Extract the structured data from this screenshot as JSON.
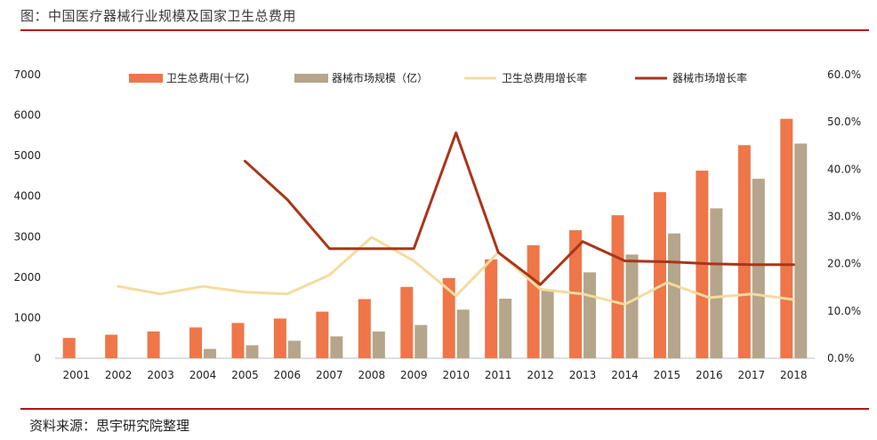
{
  "title": "图：中国医疗器械行业规模及国家卫生总费用",
  "source": "资料来源：思宇研究院整理",
  "colors": {
    "health_spend_bar": "#ee7649",
    "device_market_bar": "#b5a58a",
    "health_spend_growth_line": "#f3dc9f",
    "device_market_growth_line": "#a8361a",
    "rule": "#b3121b"
  },
  "chart_data": {
    "type": "bar",
    "categories": [
      "2001",
      "2002",
      "2003",
      "2004",
      "2005",
      "2006",
      "2007",
      "2008",
      "2009",
      "2010",
      "2011",
      "2012",
      "2013",
      "2014",
      "2015",
      "2016",
      "2017",
      "2018"
    ],
    "y_left": {
      "ylim": [
        0,
        7000
      ],
      "ticks": [
        "0",
        "1000",
        "2000",
        "3000",
        "4000",
        "5000",
        "6000",
        "7000"
      ]
    },
    "y_right": {
      "ylim": [
        0,
        60
      ],
      "ticks": [
        "0.0%",
        "10.0%",
        "20.0%",
        "30.0%",
        "40.0%",
        "50.0%",
        "60.0%"
      ]
    },
    "grid": false,
    "legend_position": "top",
    "series": [
      {
        "name": "卫生总费用(十亿)",
        "type": "bar",
        "axis": "left",
        "values": [
          500,
          580,
          660,
          760,
          870,
          980,
          1150,
          1460,
          1760,
          1980,
          2440,
          2790,
          3160,
          3530,
          4100,
          4630,
          5260,
          5910
        ]
      },
      {
        "name": "器械市场规模（亿）",
        "type": "bar",
        "axis": "left",
        "values": [
          null,
          null,
          null,
          230,
          320,
          430,
          540,
          660,
          820,
          1200,
          1470,
          1700,
          2120,
          2560,
          3080,
          3700,
          4430,
          5300
        ]
      },
      {
        "name": "卫生总费用增长率",
        "type": "line",
        "axis": "right",
        "values": [
          null,
          15.2,
          13.6,
          15.2,
          14.0,
          13.6,
          17.6,
          25.6,
          20.6,
          13.2,
          22.4,
          14.6,
          13.6,
          11.4,
          16.0,
          12.8,
          13.6,
          12.4
        ]
      },
      {
        "name": "器械市场增长率",
        "type": "line",
        "axis": "right",
        "values": [
          null,
          null,
          null,
          null,
          41.7,
          33.6,
          23.2,
          23.2,
          23.2,
          47.7,
          22.4,
          15.6,
          24.7,
          20.6,
          20.4,
          20.0,
          19.8,
          19.8
        ]
      }
    ]
  }
}
